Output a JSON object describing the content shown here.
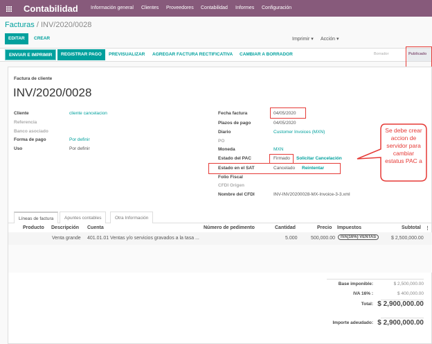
{
  "app": {
    "title": "Contabilidad",
    "menu": [
      "Información general",
      "Clientes",
      "Proveedores",
      "Contabilidad",
      "Informes",
      "Configuración"
    ]
  },
  "breadcrumb": {
    "parent": "Facturas",
    "current": "INV/2020/0028"
  },
  "toolbar": {
    "edit": "Editar",
    "create": "Crear",
    "print": "Imprimir",
    "action": "Acción"
  },
  "actions": [
    "Enviar e imprimir",
    "Registrar pago",
    "Previsualizar",
    "Agregar factura rectificativa",
    "Cambiar a borrador"
  ],
  "status": {
    "steps": [
      "Borrador",
      "Publicado"
    ],
    "active": "Publicado"
  },
  "invoice": {
    "type": "Factura de cliente",
    "number": "INV/2020/0028",
    "left": [
      {
        "label": "Cliente",
        "value": "cliente cancelacion",
        "link": true
      },
      {
        "label": "Referencia",
        "value": "",
        "muted": true
      },
      {
        "label": "Banco asociado",
        "value": "",
        "muted": true
      },
      {
        "label": "Forma de pago",
        "value": "Por definir",
        "link": true
      },
      {
        "label": "Uso",
        "value": "Por definir"
      }
    ],
    "right": [
      {
        "label": "Fecha factura",
        "value": "04/05/2020"
      },
      {
        "label": "Plazos de pago",
        "value": "04/05/2020"
      },
      {
        "label": "Diario",
        "value": "Customer Invoices (MXN)",
        "link": true
      },
      {
        "label": "PO",
        "value": "",
        "muted": true
      },
      {
        "label": "Moneda",
        "value": "MXN",
        "link": true
      },
      {
        "label": "Estado del PAC",
        "value": "Firmado",
        "action": "Solicitar Cancelación"
      },
      {
        "label": "Estado en el SAT",
        "value": "Cancelado",
        "action": "Reintentar"
      },
      {
        "label": "Folio Fiscal",
        "value": ""
      },
      {
        "label": "CFDI Origen",
        "value": "",
        "muted": true
      },
      {
        "label": "Nombre del CFDI",
        "value": "INV-INV20200028-MX-Invoice-3-3.xml"
      }
    ]
  },
  "tabs": [
    "Líneas de factura",
    "Apuntes contables",
    "Otra Información"
  ],
  "lines": {
    "headers": [
      "Producto",
      "Descripción",
      "Cuenta",
      "Número de pedimento",
      "Cantidad",
      "Precio",
      "Impuestos",
      "Subtotal"
    ],
    "rows": [
      {
        "producto": "",
        "descripcion": "Venta grande",
        "cuenta": "401.01.01 Ventas y/o servicios gravados a la tasa ...",
        "pedimento": "",
        "cantidad": "5.000",
        "precio": "500,000.00",
        "impuestos": "IVA(16%) VENTAS",
        "subtotal": "$ 2,500,000.00"
      }
    ]
  },
  "totals": {
    "base_label": "Base imponible:",
    "base": "$ 2,500,000.00",
    "iva_label": "IVA 16% :",
    "iva": "$ 400,000.00",
    "total_label": "Total:",
    "total": "$ 2,900,000.00",
    "due_label": "Importe adeudado:",
    "due": "$ 2,900,000.00"
  },
  "annotation": {
    "callout_lines": [
      "Se debe crear",
      "accion de",
      "servidor para",
      "cambiar",
      "estatus PAC a"
    ],
    "color": "#e53935"
  },
  "colors": {
    "brand": "#875a7b",
    "accent": "#00a09d"
  }
}
